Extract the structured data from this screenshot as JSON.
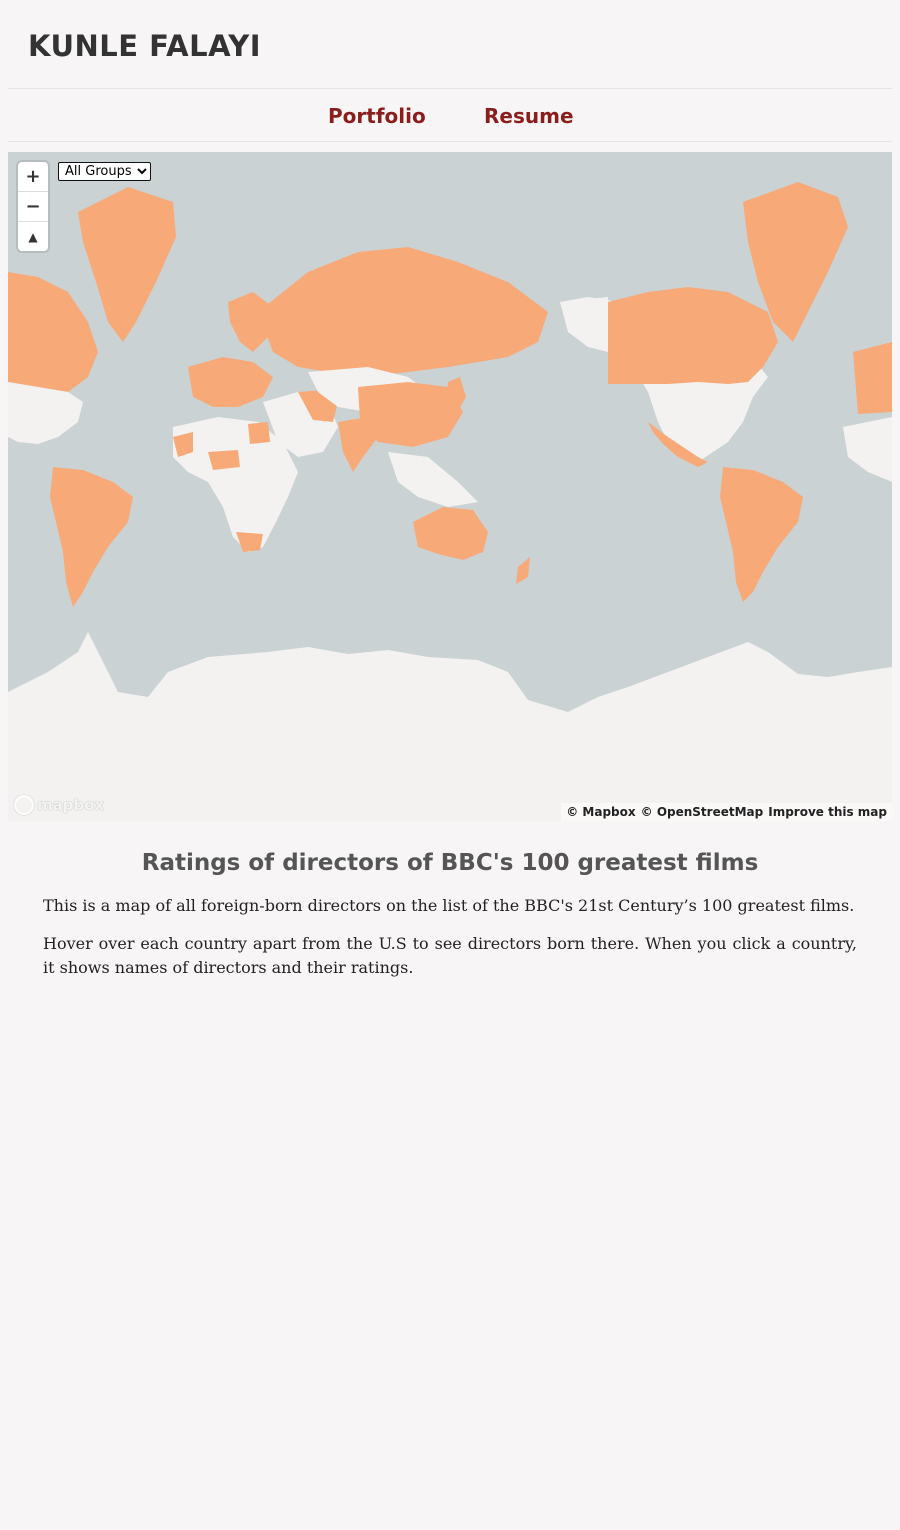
{
  "header": {
    "site_title": "KUNLE FALAYI"
  },
  "nav": {
    "items": [
      {
        "label": "Portfolio"
      },
      {
        "label": "Resume"
      }
    ]
  },
  "map": {
    "controls": {
      "zoom_in": "+",
      "zoom_out": "−",
      "compass": "▲"
    },
    "filter": {
      "selected": "All Groups",
      "options": [
        "All Groups"
      ]
    },
    "colors": {
      "water": "#cad2d4",
      "land": "#f3f2f0",
      "highlight": "#f7a978"
    },
    "logo_text": "mapbox",
    "attribution": {
      "mapbox": "© Mapbox",
      "osm": "© OpenStreetMap",
      "improve": "Improve this map"
    }
  },
  "article": {
    "title": "Ratings of directors of BBC's 100 greatest films",
    "paragraphs": [
      "This is a map of all foreign-born directors on the list of the BBC's 21st Century’s 100 greatest films.",
      "Hover over each country apart from the U.S to see directors born there. When you click a country, it shows names of directors and their ratings."
    ]
  }
}
